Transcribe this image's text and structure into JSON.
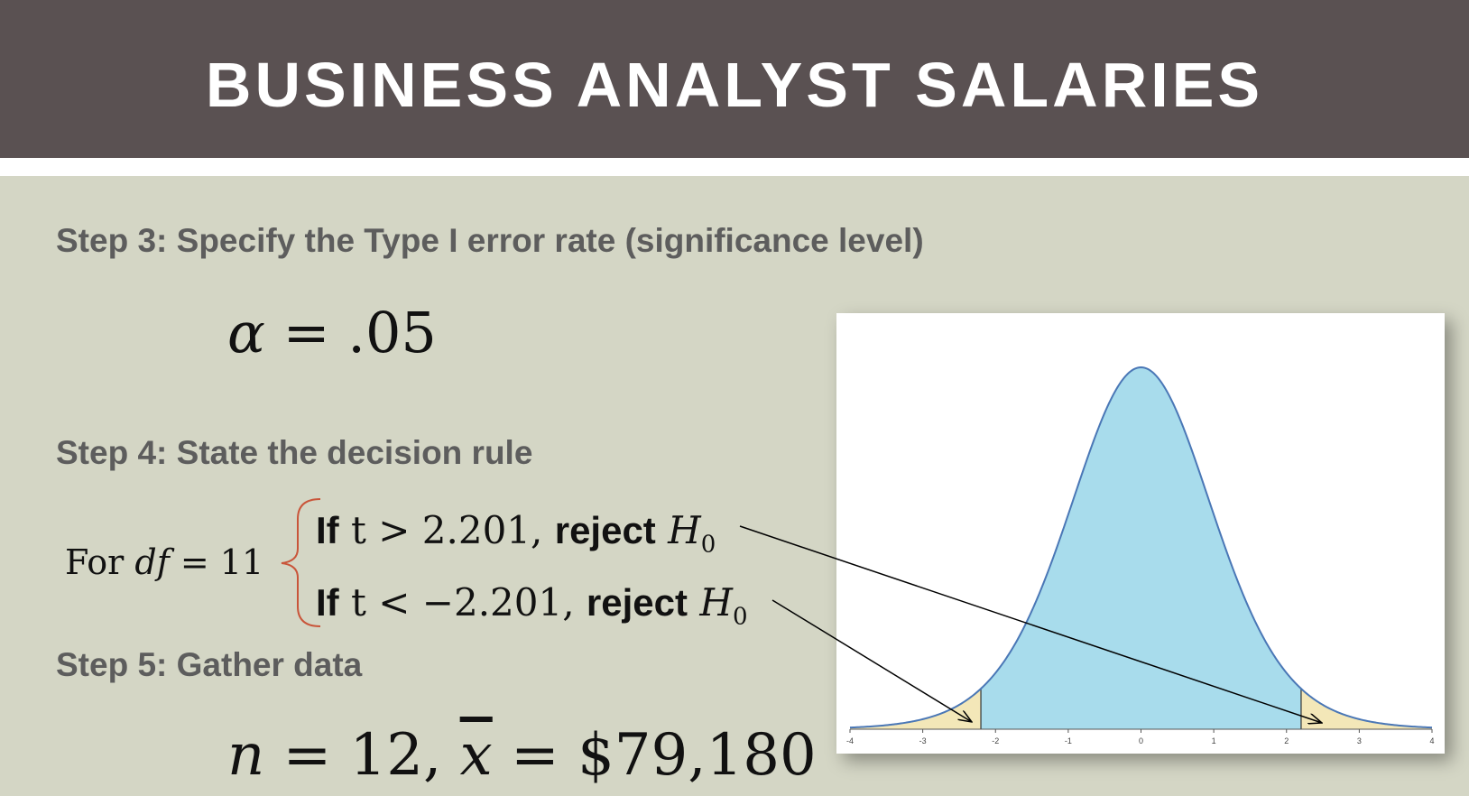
{
  "header": {
    "title": "BUSINESS ANALYST SALARIES"
  },
  "steps": {
    "step3": "Step 3: Specify the Type I error rate (significance level)",
    "step4": "Step 4: State the decision rule",
    "step5": "Step 5: Gather data"
  },
  "alpha": {
    "symbol": "α",
    "equals": " = ",
    "value": ".05"
  },
  "decision": {
    "for_label": "For ",
    "df_var": "df",
    "df_eq": " = 11",
    "if_word": "If",
    "reject_word": "reject",
    "rule_upper": {
      "cond": " t > 2.201, ",
      "h": "H",
      "sub": "0"
    },
    "rule_lower": {
      "cond": " t < −2.201, ",
      "h": "H",
      "sub": "0"
    }
  },
  "data_summary": {
    "n_var": "n",
    "n_eq": " = 12, ",
    "xbar_var": "x",
    "xbar_eq": " = $79,180"
  },
  "chart_data": {
    "type": "area",
    "distribution": "t",
    "df": 11,
    "xlim": [
      -4,
      4
    ],
    "x_ticks": [
      "-4",
      "-3",
      "-2",
      "-1",
      "0",
      "1",
      "2",
      "3",
      "4"
    ],
    "critical_values": [
      -2.201,
      2.201
    ],
    "colors": {
      "body": "#a8dcec",
      "tails": "#f3e7b8",
      "curve": "#4a77b6"
    }
  }
}
